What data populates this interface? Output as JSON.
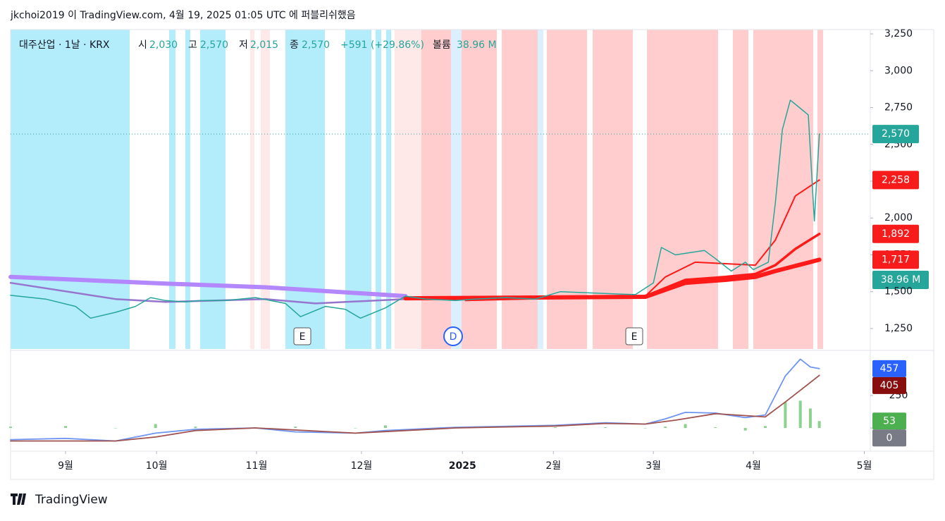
{
  "header": {
    "title": "jkchoi2019 이 TradingView.com, 4월 19, 2025 01:05 UTC 에 퍼블리쉬했음",
    "symbol": "대주산업 · 1날 · KRX",
    "open_label": "시",
    "open": "2,030",
    "high_label": "고",
    "high": "2,570",
    "low_label": "저",
    "low": "2,015",
    "close_label": "종",
    "close": "2,570",
    "change": "+591 (+29.86%)",
    "volume_label": "볼륨",
    "volume": "38.96 M"
  },
  "footer": {
    "brand": "TradingView"
  },
  "events": [
    "E",
    "D",
    "E"
  ],
  "chart_data": [
    {
      "type": "line",
      "xlim": [
        -0.55,
        8.05
      ],
      "xticks": [
        {
          "value": 0,
          "label": "9월"
        },
        {
          "value": 0.91,
          "label": "10월"
        },
        {
          "value": 1.91,
          "label": "11월"
        },
        {
          "value": 2.96,
          "label": "12월"
        },
        {
          "value": 3.97,
          "label": "2025"
        },
        {
          "value": 4.88,
          "label": "2월"
        },
        {
          "value": 5.88,
          "label": "3월"
        },
        {
          "value": 6.88,
          "label": "4월"
        },
        {
          "value": 7.99,
          "label": "5월"
        }
      ],
      "ylim": [
        1111,
        3279
      ],
      "yticks": [
        {
          "value": 1250,
          "label": "1,250"
        },
        {
          "value": 1500,
          "label": "1,500"
        },
        {
          "value": 1750,
          "label": "1,750"
        },
        {
          "value": 2000,
          "label": "2,000"
        },
        {
          "value": 2250,
          "label": "2,250"
        },
        {
          "value": 2500,
          "label": "2,500"
        },
        {
          "value": 2750,
          "label": "2,750"
        },
        {
          "value": 3000,
          "label": "3,000"
        },
        {
          "value": 3250,
          "label": "3,250"
        }
      ],
      "grid": false,
      "series": [
        {
          "color": "#b388ff",
          "width": 6,
          "x": [
            -0.55,
            1.0,
            2.0,
            3.4
          ],
          "values": [
            1600,
            1555,
            1530,
            1470
          ]
        },
        {
          "color": "#9575cd",
          "width": 2.5,
          "x": [
            -0.55,
            0.5,
            1.0,
            2.0,
            2.5,
            3.4
          ],
          "values": [
            1560,
            1450,
            1430,
            1450,
            1420,
            1450
          ]
        },
        {
          "color": "#ff1a1a",
          "width": 6,
          "x": [
            3.4,
            5.8,
            6.2,
            6.6,
            6.9,
            7.1,
            7.54
          ],
          "values": [
            1455,
            1465,
            1560,
            1580,
            1600,
            1640,
            1717
          ]
        },
        {
          "color": "#ff1a1a",
          "width": 3.5,
          "x": [
            3.4,
            5.8,
            6.2,
            6.6,
            6.9,
            7.1,
            7.3,
            7.54
          ],
          "values": [
            1450,
            1470,
            1580,
            1600,
            1620,
            1680,
            1790,
            1892
          ]
        },
        {
          "color": "#ff1a1a",
          "width": 2,
          "x": [
            4.0,
            5.8,
            6.0,
            6.3,
            6.6,
            6.9,
            7.1,
            7.3,
            7.54
          ],
          "values": [
            1440,
            1470,
            1600,
            1700,
            1690,
            1680,
            1850,
            2150,
            2258
          ]
        },
        {
          "color": "#26a69a",
          "width": 1.5,
          "x": [
            -0.55,
            -0.2,
            0.1,
            0.25,
            0.5,
            0.7,
            0.85,
            1.0,
            1.2,
            1.35,
            1.6,
            1.9,
            2.2,
            2.35,
            2.6,
            2.8,
            2.95,
            3.2,
            3.4,
            3.6,
            3.9,
            4.1,
            4.4,
            4.7,
            4.95,
            5.3,
            5.7,
            5.88,
            5.96,
            6.1,
            6.39,
            6.49,
            6.66,
            6.8,
            6.88,
            7.03,
            7.1,
            7.17,
            7.25,
            7.34,
            7.43,
            7.49,
            7.54
          ],
          "values": [
            1475,
            1450,
            1400,
            1320,
            1360,
            1400,
            1460,
            1440,
            1430,
            1440,
            1440,
            1460,
            1420,
            1330,
            1400,
            1380,
            1320,
            1390,
            1470,
            1450,
            1440,
            1450,
            1460,
            1450,
            1500,
            1490,
            1480,
            1560,
            1800,
            1750,
            1780,
            1730,
            1640,
            1700,
            1650,
            1700,
            2100,
            2600,
            2800,
            2750,
            2700,
            1980,
            2570
          ]
        }
      ],
      "price_labels": [
        {
          "value": 2570,
          "label": "2,570",
          "color": "#26a69a"
        },
        {
          "value": 2258,
          "label": "2,258",
          "color": "#f71b1b"
        },
        {
          "value": 1892,
          "label": "1,892",
          "color": "#f71b1b"
        },
        {
          "value": 1717,
          "label": "1,717",
          "color": "#f71b1b"
        }
      ]
    },
    {
      "type": "line",
      "xlim": [
        -0.55,
        8.05
      ],
      "ylim": [
        -179,
        592
      ],
      "yticks": [
        0,
        250
      ],
      "grid": false,
      "series": [
        {
          "color": "#6f95f0",
          "x": [
            -0.55,
            0,
            0.5,
            0.9,
            1.3,
            1.9,
            2.3,
            2.9,
            3.2,
            3.9,
            4.9,
            5.4,
            5.8,
            6.0,
            6.2,
            6.5,
            6.8,
            7.0,
            7.2,
            7.35,
            7.45,
            7.54
          ],
          "values": [
            -90,
            -80,
            -100,
            -40,
            -10,
            0,
            -30,
            -40,
            -20,
            5,
            20,
            40,
            30,
            70,
            120,
            115,
            80,
            100,
            400,
            530,
            470,
            457
          ]
        },
        {
          "color": "#a0524f",
          "x": [
            -0.55,
            0.5,
            0.9,
            1.3,
            1.9,
            2.9,
            3.9,
            4.9,
            5.4,
            5.8,
            6.1,
            6.5,
            6.8,
            7.0,
            7.2,
            7.4,
            7.54
          ],
          "values": [
            -100,
            -100,
            -70,
            -20,
            0,
            -40,
            0,
            15,
            35,
            30,
            60,
            110,
            95,
            85,
            200,
            320,
            405
          ]
        }
      ],
      "histogram": {
        "color": "#8bd18f",
        "x": [
          -0.55,
          0,
          0.5,
          0.9,
          1.3,
          1.9,
          2.3,
          2.9,
          3.2,
          3.9,
          4.9,
          5.4,
          5.8,
          6.0,
          6.2,
          6.5,
          6.8,
          7.0,
          7.2,
          7.35,
          7.45,
          7.54
        ],
        "values": [
          10,
          15,
          0,
          30,
          10,
          0,
          10,
          0,
          20,
          5,
          5,
          5,
          0,
          10,
          30,
          5,
          -20,
          15,
          200,
          210,
          150,
          53
        ]
      },
      "badges": [
        {
          "value": 457,
          "color": "#2962ff"
        },
        {
          "value": 405,
          "color": "#880e0e"
        },
        {
          "value": 53,
          "color": "#4caf50"
        },
        {
          "value": 0,
          "color": "#787b86"
        }
      ]
    }
  ]
}
